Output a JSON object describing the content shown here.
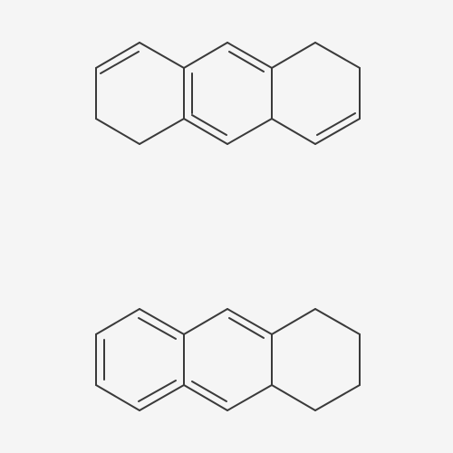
{
  "diagram": {
    "type": "chemical-structures",
    "colors": {
      "background": "#f5f5f5",
      "bond": "#3a3a3a"
    },
    "structures": [
      {
        "id": "structure-1",
        "atom_labels": []
      },
      {
        "id": "structure-2",
        "atom_labels": []
      }
    ]
  }
}
